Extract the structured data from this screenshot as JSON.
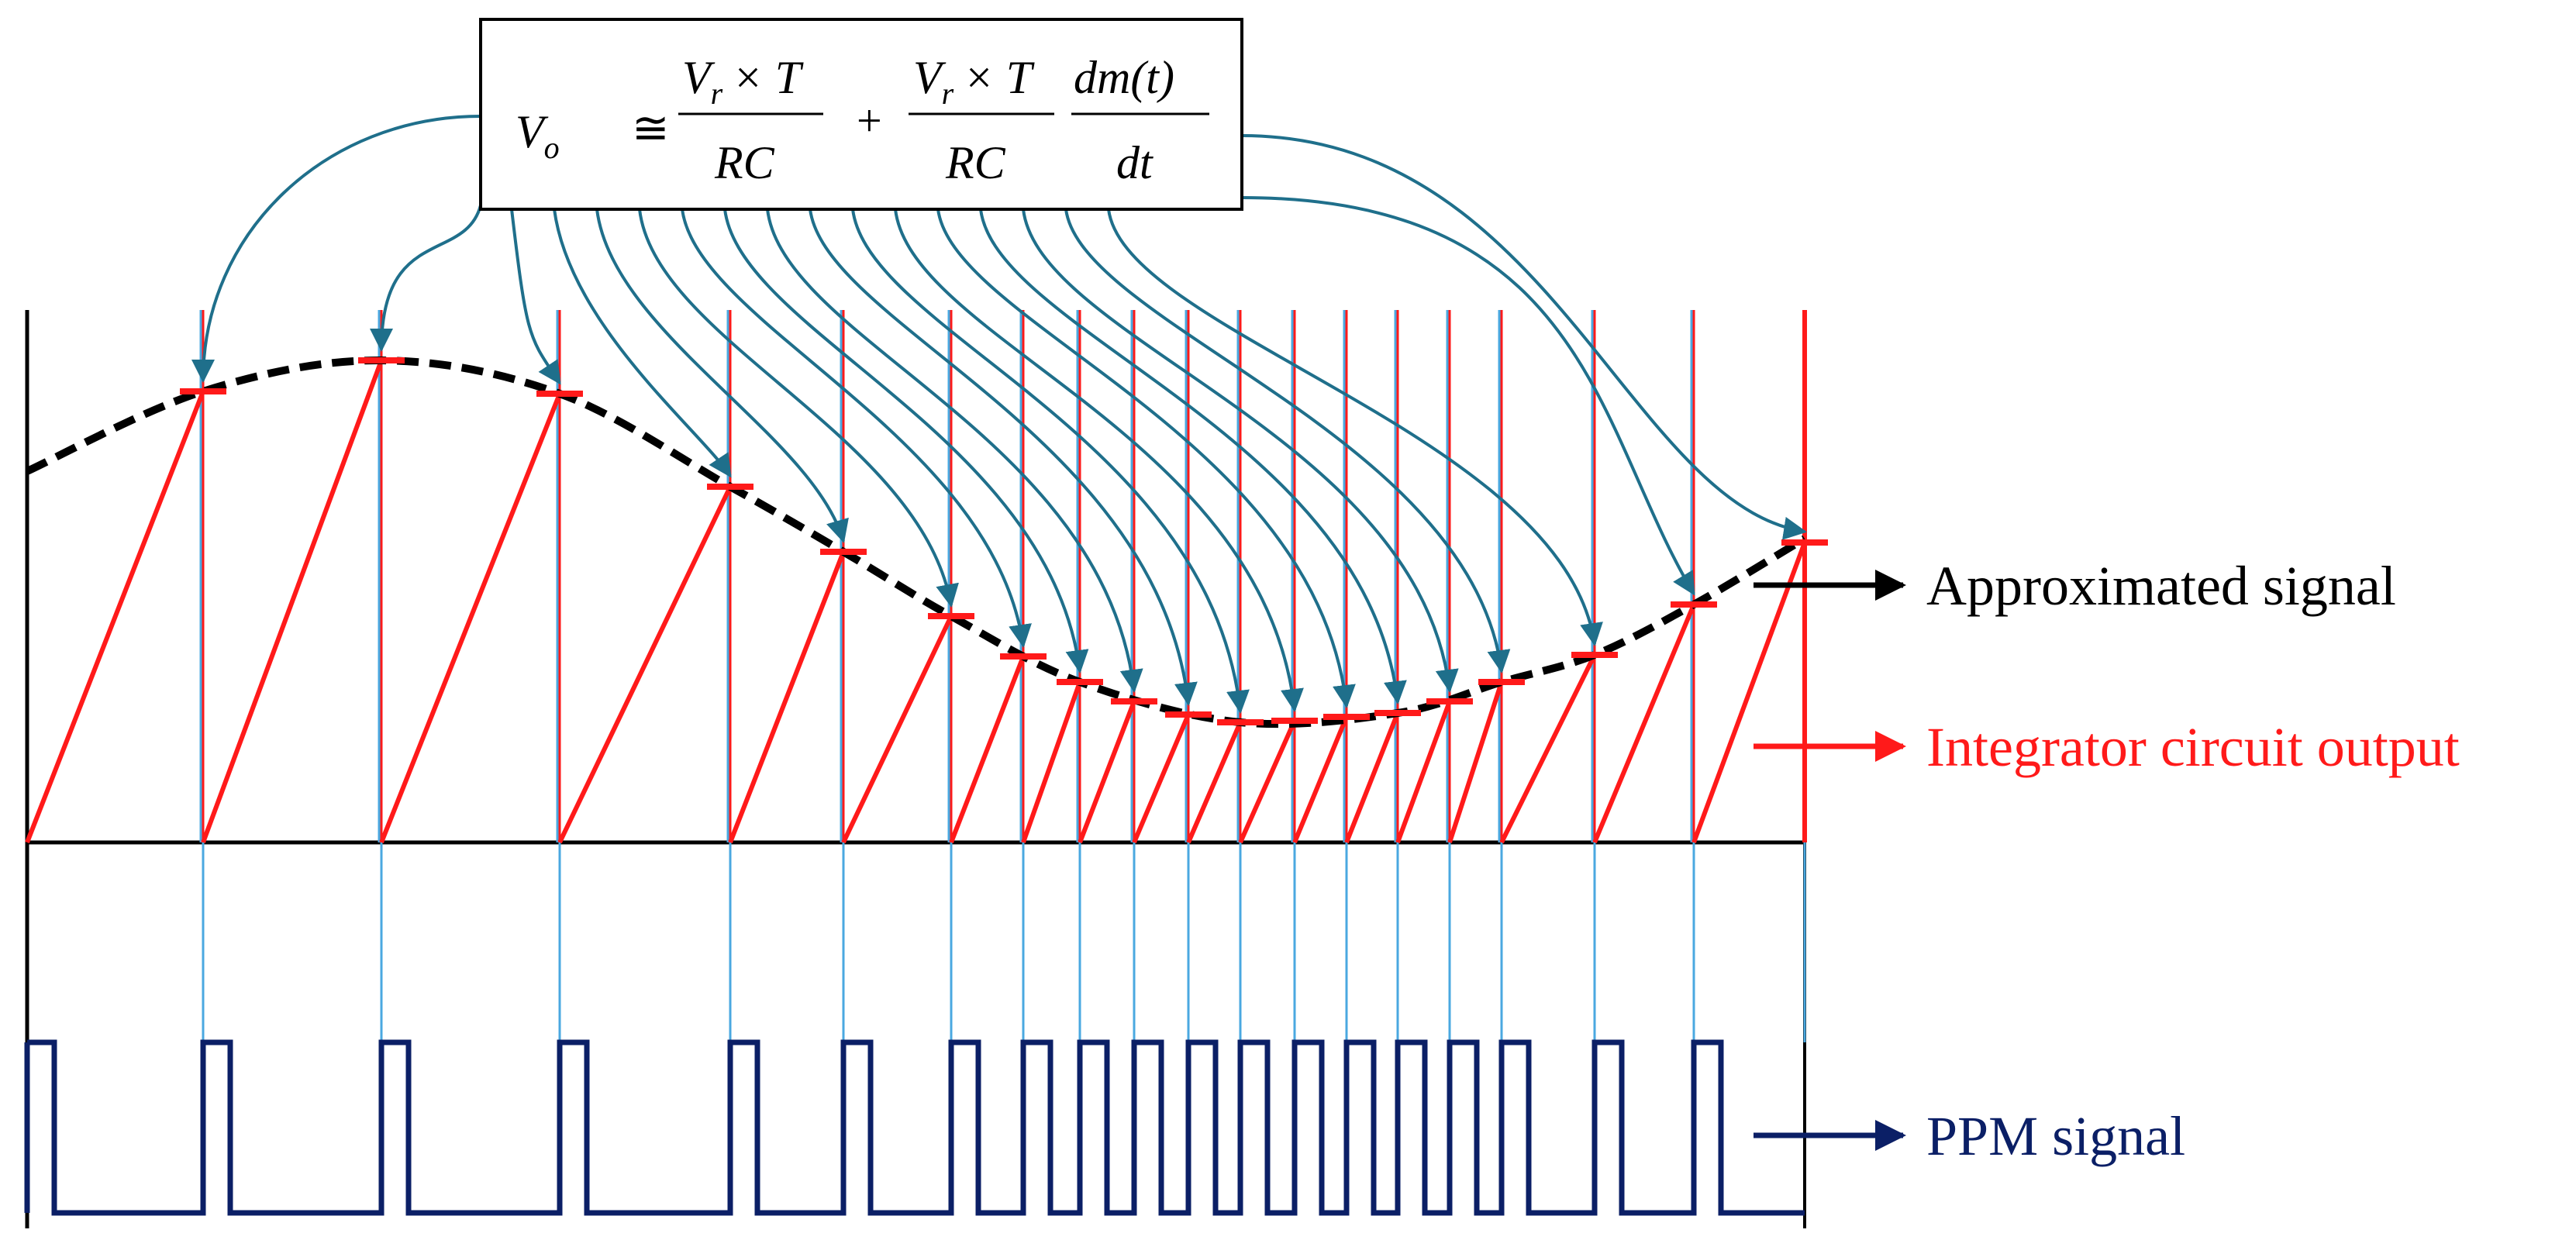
{
  "formula": {
    "lhs": "V",
    "lhs_sub": "o",
    "approx": "≅",
    "frac1_num_v": "V",
    "frac1_num_sub": "r",
    "frac1_num_rest": "× T",
    "frac1_den": "RC",
    "plus": "+",
    "frac2_num_v": "V",
    "frac2_num_sub": "r",
    "frac2_num_rest": "× T",
    "frac2_den": "RC",
    "frac3_num": "dm(t)",
    "frac3_den": "dt"
  },
  "labels": {
    "approximated": "Approximated signal",
    "integrator": "Integrator circuit output",
    "ppm": "PPM signal"
  },
  "colors": {
    "approximated": "#000000",
    "integrator": "#ff1a1a",
    "ppm": "#0b1f66",
    "arrow": "#1f6f8b",
    "sample_line": "#4aa8e0",
    "ramp": "#ff1a1a"
  }
}
